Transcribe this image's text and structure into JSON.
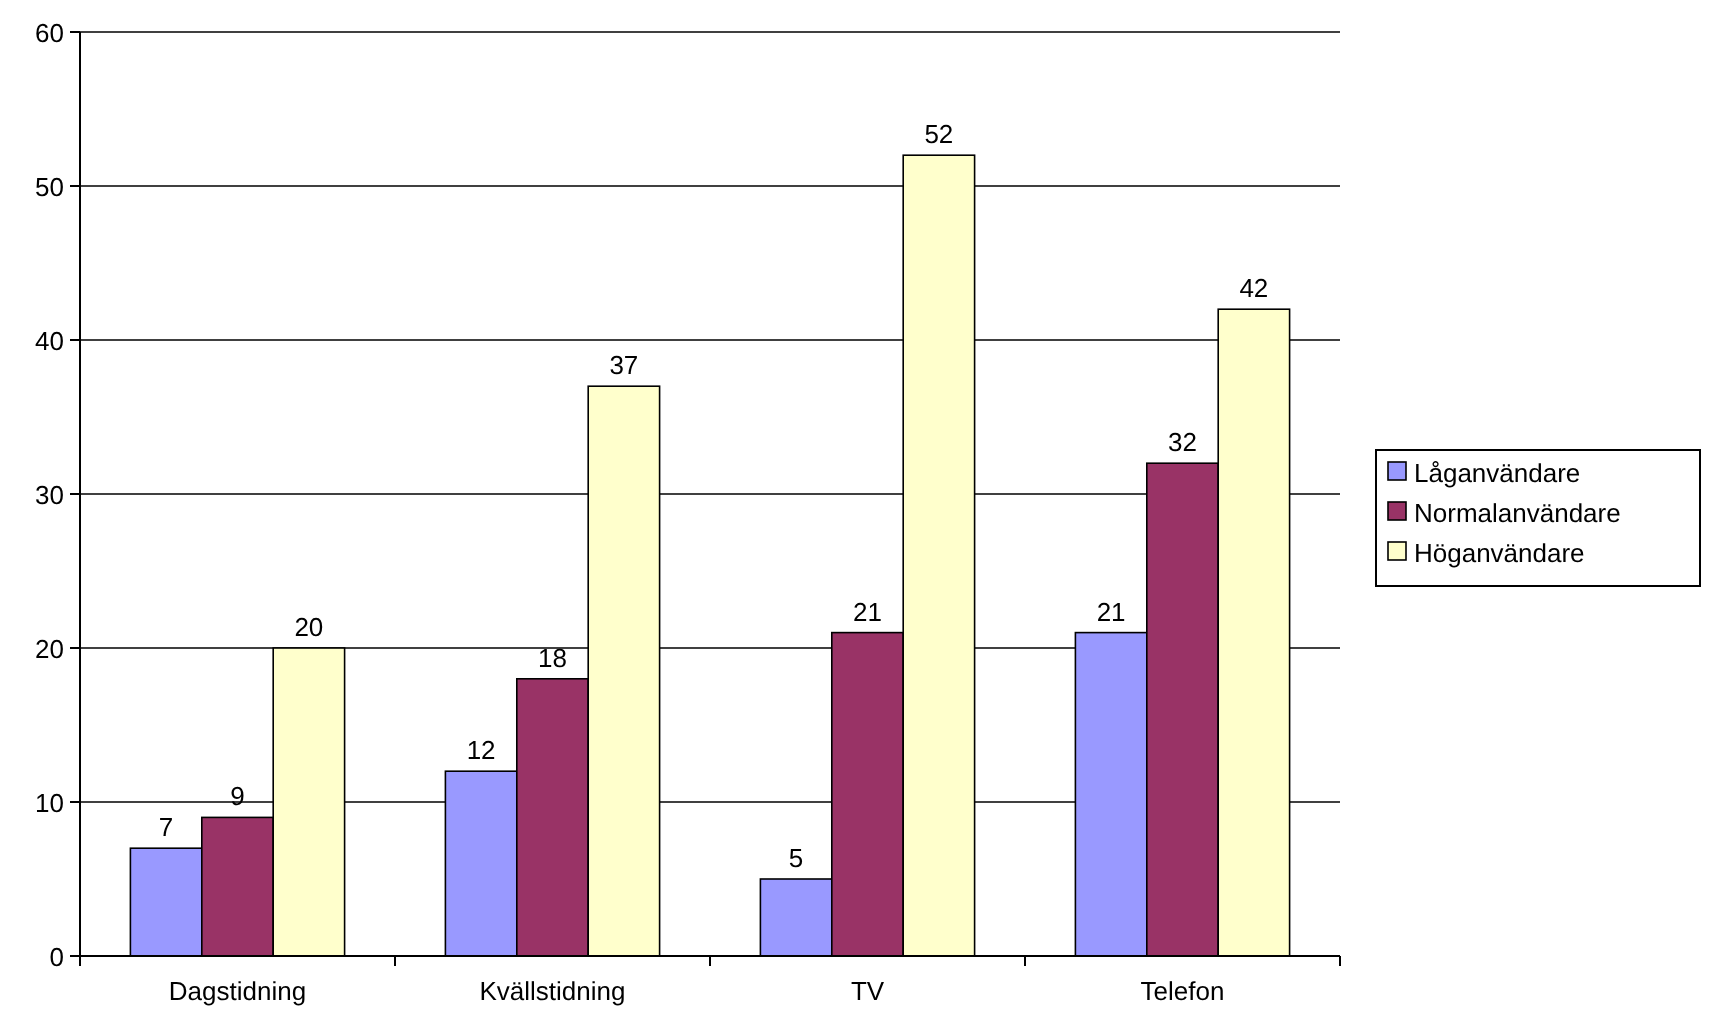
{
  "chart_data": {
    "type": "bar",
    "categories": [
      "Dagstidning",
      "Kvällstidning",
      "TV",
      "Telefon"
    ],
    "series": [
      {
        "name": "Låganvändare",
        "color": "#9999ff",
        "values": [
          7,
          12,
          5,
          21
        ]
      },
      {
        "name": "Normalanvändare",
        "color": "#993366",
        "values": [
          9,
          18,
          21,
          32
        ]
      },
      {
        "name": "Höganvändare",
        "color": "#ffffcc",
        "values": [
          20,
          37,
          52,
          42
        ]
      }
    ],
    "ylim": [
      0,
      60
    ],
    "yticks": [
      0,
      10,
      20,
      30,
      40,
      50,
      60
    ],
    "grid": "y",
    "legend": "right",
    "data_labels": true
  }
}
